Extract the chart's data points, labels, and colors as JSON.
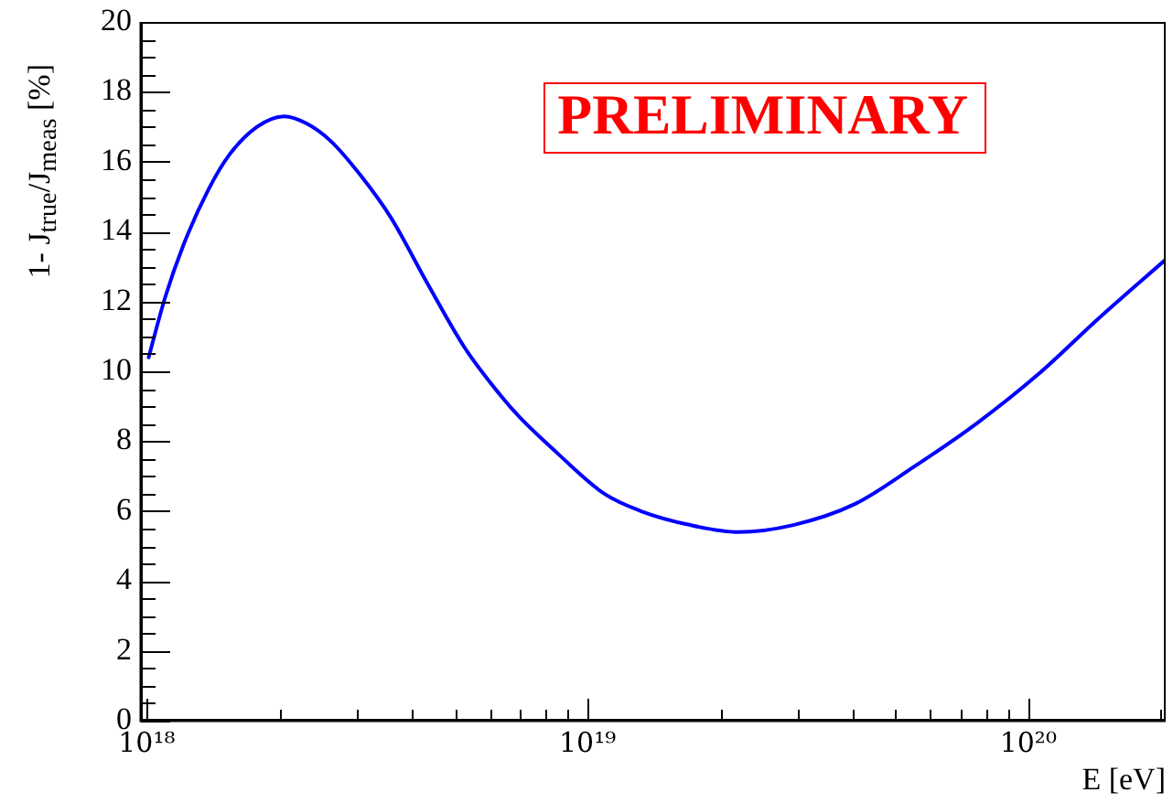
{
  "chart_data": {
    "type": "line",
    "xlabel": "E [eV]",
    "ylabel": "1- J$_{true}$/J$_{meas}$ [%]",
    "annotations": [
      "PRELIMINARY"
    ],
    "log": "x",
    "xlim": [
      9.7e+17,
      2.05e+20
    ],
    "xticks": [
      {
        "value": 1e+18,
        "label": "10¹⁸"
      },
      {
        "value": 2e+18,
        "label": null
      },
      {
        "value": 3e+18,
        "label": null
      },
      {
        "value": 4e+18,
        "label": null
      },
      {
        "value": 5e+18,
        "label": null
      },
      {
        "value": 6e+18,
        "label": null
      },
      {
        "value": 7e+18,
        "label": null
      },
      {
        "value": 8e+18,
        "label": null
      },
      {
        "value": 9e+18,
        "label": null
      },
      {
        "value": 1e+19,
        "label": "10¹⁹"
      },
      {
        "value": 2e+19,
        "label": null
      },
      {
        "value": 3e+19,
        "label": null
      },
      {
        "value": 4e+19,
        "label": null
      },
      {
        "value": 5e+19,
        "label": null
      },
      {
        "value": 6e+19,
        "label": null
      },
      {
        "value": 7e+19,
        "label": null
      },
      {
        "value": 8e+19,
        "label": null
      },
      {
        "value": 9e+19,
        "label": null
      },
      {
        "value": 1e+20,
        "label": "10²⁰"
      },
      {
        "value": 2e+20,
        "label": null
      }
    ],
    "ylim": [
      0,
      20
    ],
    "yticks": [
      0,
      {
        "value": 0.5,
        "label": null
      },
      {
        "value": 1,
        "label": null
      },
      {
        "value": 1.5,
        "label": null
      },
      2,
      {
        "value": 2.5,
        "label": null
      },
      {
        "value": 3,
        "label": null
      },
      {
        "value": 3.5,
        "label": null
      },
      4,
      {
        "value": 4.5,
        "label": null
      },
      {
        "value": 5,
        "label": null
      },
      {
        "value": 5.5,
        "label": null
      },
      6,
      {
        "value": 6.5,
        "label": null
      },
      {
        "value": 7,
        "label": null
      },
      {
        "value": 7.5,
        "label": null
      },
      8,
      {
        "value": 8.5,
        "label": null
      },
      {
        "value": 9,
        "label": null
      },
      {
        "value": 9.5,
        "label": null
      },
      10,
      {
        "value": 10.5,
        "label": null
      },
      {
        "value": 11,
        "label": null
      },
      {
        "value": 11.5,
        "label": null
      },
      12,
      {
        "value": 12.5,
        "label": null
      },
      {
        "value": 13,
        "label": null
      },
      {
        "value": 13.5,
        "label": null
      },
      14,
      {
        "value": 14.5,
        "label": null
      },
      {
        "value": 15,
        "label": null
      },
      {
        "value": 15.5,
        "label": null
      },
      16,
      {
        "value": 16.5,
        "label": null
      },
      {
        "value": 17,
        "label": null
      },
      {
        "value": 17.5,
        "label": null
      },
      18,
      {
        "value": 18.5,
        "label": null
      },
      {
        "value": 19,
        "label": null
      },
      {
        "value": 19.5,
        "label": null
      },
      20
    ],
    "color": "#0000ff",
    "x": [
      1.01e+18,
      1.1e+18,
      1.21e+18,
      1.38e+18,
      1.54e+18,
      1.78e+18,
      2.05e+18,
      2.3e+18,
      2.61e+18,
      3.06e+18,
      3.58e+18,
      4.34e+18,
      5.25e+18,
      6.36e+18,
      7e+18,
      8.47e+18,
      1.09e+19,
      1.32e+19,
      1.71e+19,
      2.2e+19,
      2.93e+19,
      4.04e+19,
      5.55e+19,
      7.62e+19,
      1.05e+20,
      1.44e+20,
      2.05e+20
    ],
    "values": [
      10.4,
      12.1,
      13.6,
      15.2,
      16.2,
      17.0,
      17.3,
      17.1,
      16.6,
      15.6,
      14.4,
      12.5,
      10.7,
      9.3,
      8.7,
      7.7,
      6.5,
      6.0,
      5.6,
      5.4,
      5.6,
      6.2,
      7.3,
      8.5,
      9.9,
      11.5,
      13.2
    ]
  }
}
